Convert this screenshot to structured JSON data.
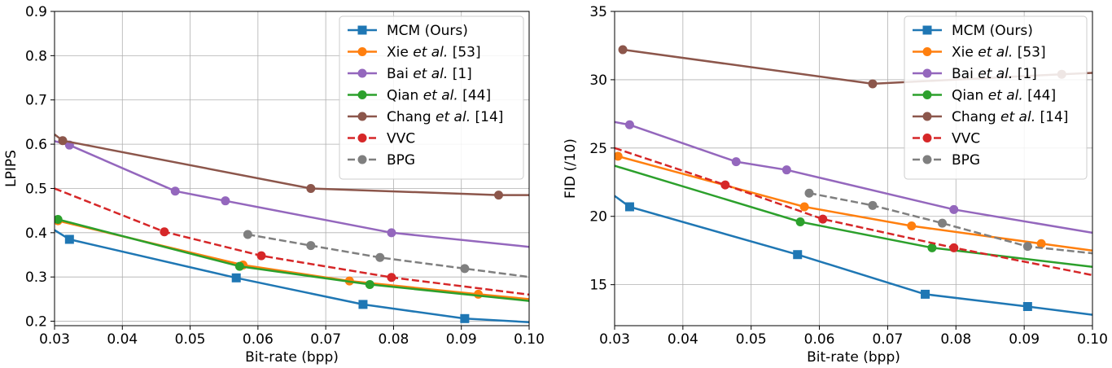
{
  "chart_data": [
    {
      "type": "line",
      "xlabel": "Bit-rate (bpp)",
      "ylabel": "LPIPS",
      "xlim": [
        0.03,
        0.1
      ],
      "ylim": [
        0.19,
        0.9
      ],
      "xticks": [
        "0.03",
        "0.04",
        "0.05",
        "0.06",
        "0.07",
        "0.08",
        "0.09",
        "0.10"
      ],
      "yticks": [
        "0.2",
        "0.3",
        "0.4",
        "0.5",
        "0.6",
        "0.7",
        "0.8",
        "0.9"
      ],
      "grid": true,
      "legend_position": "top-right",
      "series": [
        {
          "name": "MCM (Ours)",
          "color": "#1f77b4",
          "marker": "square",
          "dashed": false,
          "x": [
            0.03,
            0.0322,
            0.0568,
            0.0755,
            0.0905,
            0.1
          ],
          "y": [
            0.406,
            0.385,
            0.298,
            0.238,
            0.206,
            0.198
          ],
          "marked": [
            false,
            true,
            true,
            true,
            true,
            false
          ]
        },
        {
          "name": "Xie et al. [53]",
          "color": "#ff7f0e",
          "marker": "circle",
          "dashed": false,
          "x": [
            0.03,
            0.0305,
            0.0578,
            0.0735,
            0.0925,
            0.1
          ],
          "y": [
            0.43,
            0.427,
            0.327,
            0.291,
            0.261,
            0.25
          ],
          "marked": [
            false,
            true,
            true,
            true,
            true,
            false
          ]
        },
        {
          "name": "Bai et al. [1]",
          "color": "#9467bd",
          "marker": "circle",
          "dashed": false,
          "x": [
            0.03,
            0.0322,
            0.0478,
            0.0552,
            0.0797,
            0.1
          ],
          "y": [
            0.607,
            0.598,
            0.494,
            0.472,
            0.4,
            0.368
          ],
          "marked": [
            false,
            true,
            true,
            true,
            true,
            false
          ]
        },
        {
          "name": "Qian et al. [44]",
          "color": "#2ca02c",
          "marker": "circle",
          "dashed": false,
          "x": [
            0.03,
            0.0305,
            0.0573,
            0.0765,
            0.1
          ],
          "y": [
            0.432,
            0.43,
            0.324,
            0.283,
            0.246
          ],
          "marked": [
            false,
            true,
            true,
            true,
            false
          ]
        },
        {
          "name": "Chang et al. [14]",
          "color": "#8c564b",
          "marker": "circle",
          "dashed": false,
          "x": [
            0.03,
            0.0312,
            0.0678,
            0.0955,
            0.1
          ],
          "y": [
            0.622,
            0.608,
            0.5,
            0.485,
            0.485
          ],
          "marked": [
            false,
            true,
            true,
            true,
            false
          ]
        },
        {
          "name": "VVC",
          "color": "#d62728",
          "marker": "circle",
          "dashed": true,
          "x": [
            0.03,
            0.0462,
            0.0605,
            0.0797,
            0.1
          ],
          "y": [
            0.5,
            0.402,
            0.348,
            0.299,
            0.26
          ],
          "marked": [
            false,
            true,
            true,
            true,
            false
          ]
        },
        {
          "name": "BPG",
          "color": "#7f7f7f",
          "marker": "circle",
          "dashed": true,
          "x": [
            0.0585,
            0.0678,
            0.078,
            0.0905,
            0.1
          ],
          "y": [
            0.396,
            0.371,
            0.344,
            0.319,
            0.3
          ],
          "marked": [
            true,
            true,
            true,
            true,
            false
          ]
        }
      ]
    },
    {
      "type": "line",
      "xlabel": "Bit-rate (bpp)",
      "ylabel": "FID (/10)",
      "xlim": [
        0.03,
        0.1
      ],
      "ylim": [
        12,
        35
      ],
      "xticks": [
        "0.03",
        "0.04",
        "0.05",
        "0.06",
        "0.07",
        "0.08",
        "0.09",
        "0.10"
      ],
      "yticks": [
        "15",
        "20",
        "25",
        "30",
        "35"
      ],
      "grid": true,
      "legend_position": "top-right",
      "series": [
        {
          "name": "MCM (Ours)",
          "color": "#1f77b4",
          "marker": "square",
          "dashed": false,
          "x": [
            0.03,
            0.0322,
            0.0568,
            0.0755,
            0.0905,
            0.1
          ],
          "y": [
            21.5,
            20.7,
            17.2,
            14.3,
            13.4,
            12.8
          ],
          "marked": [
            false,
            true,
            true,
            true,
            true,
            false
          ]
        },
        {
          "name": "Xie et al. [53]",
          "color": "#ff7f0e",
          "marker": "circle",
          "dashed": false,
          "x": [
            0.03,
            0.0305,
            0.0578,
            0.0735,
            0.0925,
            0.1
          ],
          "y": [
            24.5,
            24.4,
            20.7,
            19.3,
            18.0,
            17.5
          ],
          "marked": [
            false,
            true,
            true,
            true,
            true,
            false
          ]
        },
        {
          "name": "Bai et al. [1]",
          "color": "#9467bd",
          "marker": "circle",
          "dashed": false,
          "x": [
            0.03,
            0.0322,
            0.0478,
            0.0552,
            0.0797,
            0.1
          ],
          "y": [
            26.9,
            26.7,
            24.0,
            23.4,
            20.5,
            18.8
          ],
          "marked": [
            false,
            true,
            true,
            true,
            true,
            false
          ]
        },
        {
          "name": "Qian et al. [44]",
          "color": "#2ca02c",
          "marker": "circle",
          "dashed": false,
          "x": [
            0.03,
            0.0572,
            0.0765,
            0.1
          ],
          "y": [
            23.7,
            19.6,
            17.7,
            16.3
          ],
          "marked": [
            false,
            true,
            true,
            false
          ]
        },
        {
          "name": "Chang et al. [14]",
          "color": "#8c564b",
          "marker": "circle",
          "dashed": false,
          "x": [
            0.0312,
            0.0678,
            0.0955,
            0.1
          ],
          "y": [
            32.2,
            29.7,
            30.4,
            30.5
          ],
          "marked": [
            true,
            true,
            true,
            false
          ]
        },
        {
          "name": "VVC",
          "color": "#d62728",
          "marker": "circle",
          "dashed": true,
          "x": [
            0.03,
            0.0462,
            0.0605,
            0.0797,
            0.1
          ],
          "y": [
            25.0,
            22.3,
            19.8,
            17.7,
            15.7
          ],
          "marked": [
            false,
            true,
            true,
            true,
            false
          ]
        },
        {
          "name": "BPG",
          "color": "#7f7f7f",
          "marker": "circle",
          "dashed": true,
          "x": [
            0.0585,
            0.0678,
            0.078,
            0.0905,
            0.1
          ],
          "y": [
            21.7,
            20.8,
            19.5,
            17.8,
            17.3
          ],
          "marked": [
            true,
            true,
            true,
            true,
            false
          ]
        }
      ]
    }
  ],
  "legend": [
    {
      "prefix": "MCM (Ours)",
      "italic": "",
      "suffix": ""
    },
    {
      "prefix": "Xie ",
      "italic": "et al.",
      "suffix": " [53]"
    },
    {
      "prefix": "Bai ",
      "italic": "et al.",
      "suffix": " [1]"
    },
    {
      "prefix": "Qian ",
      "italic": "et al.",
      "suffix": " [44]"
    },
    {
      "prefix": "Chang ",
      "italic": "et al.",
      "suffix": " [14]"
    },
    {
      "prefix": "VVC",
      "italic": "",
      "suffix": ""
    },
    {
      "prefix": "BPG",
      "italic": "",
      "suffix": ""
    }
  ]
}
